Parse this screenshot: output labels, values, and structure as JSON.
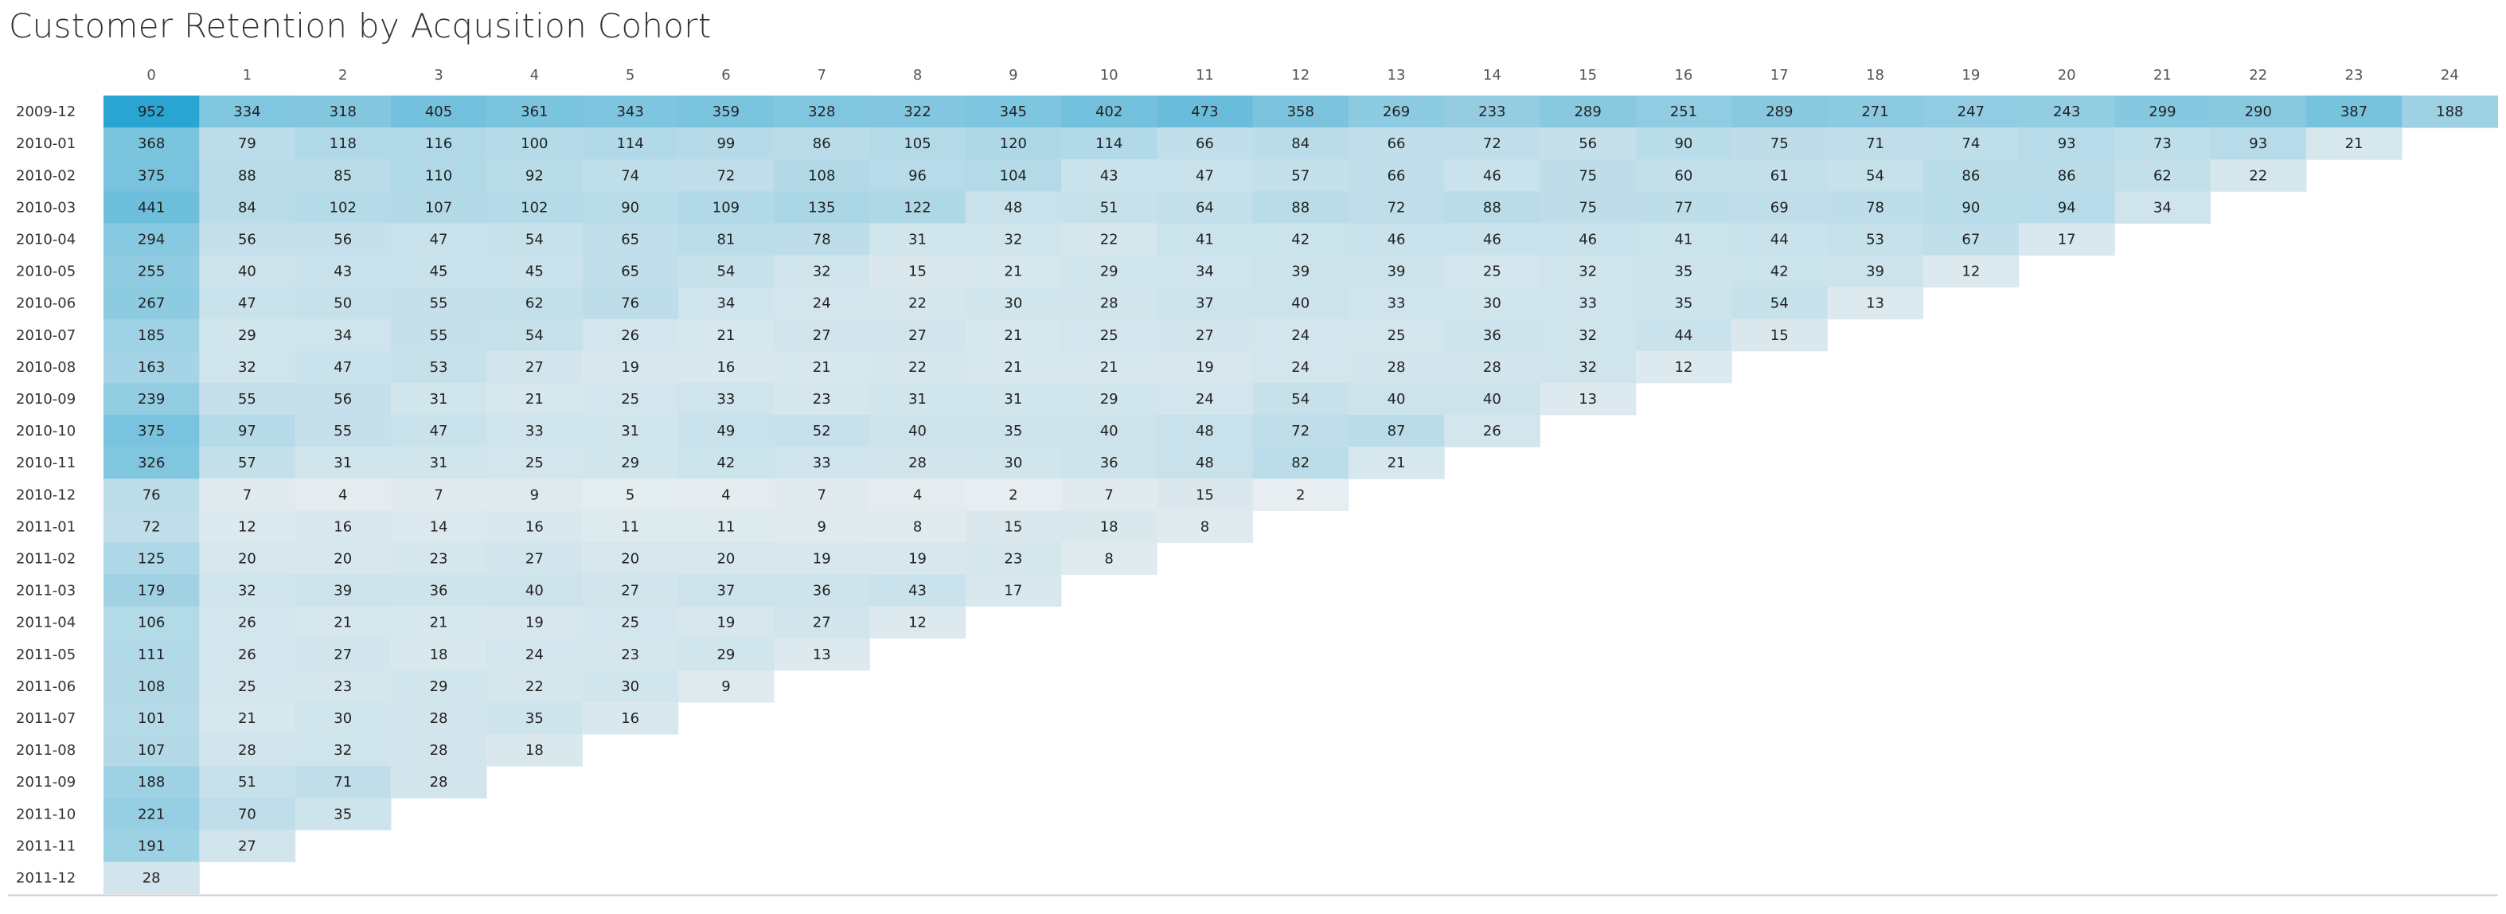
{
  "title": "Customer Retention by Acqusition Cohort",
  "colors": {
    "high": "#2aa5d1",
    "low": "#eef0f1",
    "text": "#222222",
    "title": "#333333",
    "axis_line": "#cccccc"
  },
  "chart_data": {
    "type": "heatmap",
    "title": "Customer Retention by Acqusition Cohort",
    "xlabel": "",
    "ylabel": "",
    "color_scale": "sequential blue, darker = higher count",
    "columns": [
      "0",
      "1",
      "2",
      "3",
      "4",
      "5",
      "6",
      "7",
      "8",
      "9",
      "10",
      "11",
      "12",
      "13",
      "14",
      "15",
      "16",
      "17",
      "18",
      "19",
      "20",
      "21",
      "22",
      "23",
      "24"
    ],
    "rows": [
      "2009-12",
      "2010-01",
      "2010-02",
      "2010-03",
      "2010-04",
      "2010-05",
      "2010-06",
      "2010-07",
      "2010-08",
      "2010-09",
      "2010-10",
      "2010-11",
      "2010-12",
      "2011-01",
      "2011-02",
      "2011-03",
      "2011-04",
      "2011-05",
      "2011-06",
      "2011-07",
      "2011-08",
      "2011-09",
      "2011-10",
      "2011-11",
      "2011-12"
    ],
    "values": [
      [
        952,
        334,
        318,
        405,
        361,
        343,
        359,
        328,
        322,
        345,
        402,
        473,
        358,
        269,
        233,
        289,
        251,
        289,
        271,
        247,
        243,
        299,
        290,
        387,
        188
      ],
      [
        368,
        79,
        118,
        116,
        100,
        114,
        99,
        86,
        105,
        120,
        114,
        66,
        84,
        66,
        72,
        56,
        90,
        75,
        71,
        74,
        93,
        73,
        93,
        21
      ],
      [
        375,
        88,
        85,
        110,
        92,
        74,
        72,
        108,
        96,
        104,
        43,
        47,
        57,
        66,
        46,
        75,
        60,
        61,
        54,
        86,
        86,
        62,
        22
      ],
      [
        441,
        84,
        102,
        107,
        102,
        90,
        109,
        135,
        122,
        48,
        51,
        64,
        88,
        72,
        88,
        75,
        77,
        69,
        78,
        90,
        94,
        34
      ],
      [
        294,
        56,
        56,
        47,
        54,
        65,
        81,
        78,
        31,
        32,
        22,
        41,
        42,
        46,
        46,
        46,
        41,
        44,
        53,
        67,
        17
      ],
      [
        255,
        40,
        43,
        45,
        45,
        65,
        54,
        32,
        15,
        21,
        29,
        34,
        39,
        39,
        25,
        32,
        35,
        42,
        39,
        12
      ],
      [
        267,
        47,
        50,
        55,
        62,
        76,
        34,
        24,
        22,
        30,
        28,
        37,
        40,
        33,
        30,
        33,
        35,
        54,
        13
      ],
      [
        185,
        29,
        34,
        55,
        54,
        26,
        21,
        27,
        27,
        21,
        25,
        27,
        24,
        25,
        36,
        32,
        44,
        15
      ],
      [
        163,
        32,
        47,
        53,
        27,
        19,
        16,
        21,
        22,
        21,
        21,
        19,
        24,
        28,
        28,
        32,
        12
      ],
      [
        239,
        55,
        56,
        31,
        21,
        25,
        33,
        23,
        31,
        31,
        29,
        24,
        54,
        40,
        40,
        13
      ],
      [
        375,
        97,
        55,
        47,
        33,
        31,
        49,
        52,
        40,
        35,
        40,
        48,
        72,
        87,
        26
      ],
      [
        326,
        57,
        31,
        31,
        25,
        29,
        42,
        33,
        28,
        30,
        36,
        48,
        82,
        21
      ],
      [
        76,
        7,
        4,
        7,
        9,
        5,
        4,
        7,
        4,
        2,
        7,
        15,
        2
      ],
      [
        72,
        12,
        16,
        14,
        16,
        11,
        11,
        9,
        8,
        15,
        18,
        8
      ],
      [
        125,
        20,
        20,
        23,
        27,
        20,
        20,
        19,
        19,
        23,
        8
      ],
      [
        179,
        32,
        39,
        36,
        40,
        27,
        37,
        36,
        43,
        17
      ],
      [
        106,
        26,
        21,
        21,
        19,
        25,
        19,
        27,
        12
      ],
      [
        111,
        26,
        27,
        18,
        24,
        23,
        29,
        13
      ],
      [
        108,
        25,
        23,
        29,
        22,
        30,
        9
      ],
      [
        101,
        21,
        30,
        28,
        35,
        16
      ],
      [
        107,
        28,
        32,
        28,
        18
      ],
      [
        188,
        51,
        71,
        28
      ],
      [
        221,
        70,
        35
      ],
      [
        191,
        27
      ],
      [
        28
      ]
    ]
  }
}
